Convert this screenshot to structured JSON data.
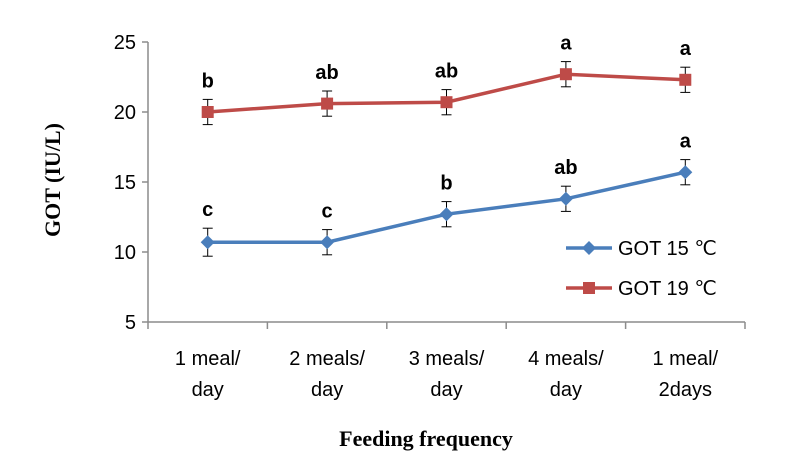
{
  "chart_data": {
    "type": "line",
    "title": "",
    "xlabel": "Feeding frequency",
    "ylabel": "GOT (IU/L)",
    "ylim": [
      5,
      25
    ],
    "yticks": [
      "5",
      "10",
      "15",
      "20",
      "25"
    ],
    "categories": [
      [
        "1 meal/",
        "day"
      ],
      [
        "2 meals/",
        "day"
      ],
      [
        "3 meals/",
        "day"
      ],
      [
        "4 meals/",
        "day"
      ],
      [
        "1 meal/",
        "2days"
      ]
    ],
    "legend_position": "right",
    "series": [
      {
        "name": "GOT 15 ℃",
        "color": "#4a7ebb",
        "marker": "diamond",
        "values": [
          10.7,
          10.7,
          12.7,
          13.8,
          15.7
        ],
        "errors": [
          1.0,
          0.9,
          0.9,
          0.9,
          0.9
        ],
        "letters": [
          "c",
          "c",
          "b",
          "ab",
          "a"
        ]
      },
      {
        "name": "GOT 19 ℃",
        "color": "#be4b48",
        "marker": "square",
        "values": [
          20.0,
          20.6,
          20.7,
          22.7,
          22.3
        ],
        "errors": [
          0.9,
          0.9,
          0.9,
          0.9,
          0.9
        ],
        "letters": [
          "b",
          "ab",
          "ab",
          "a",
          "a"
        ]
      }
    ]
  }
}
